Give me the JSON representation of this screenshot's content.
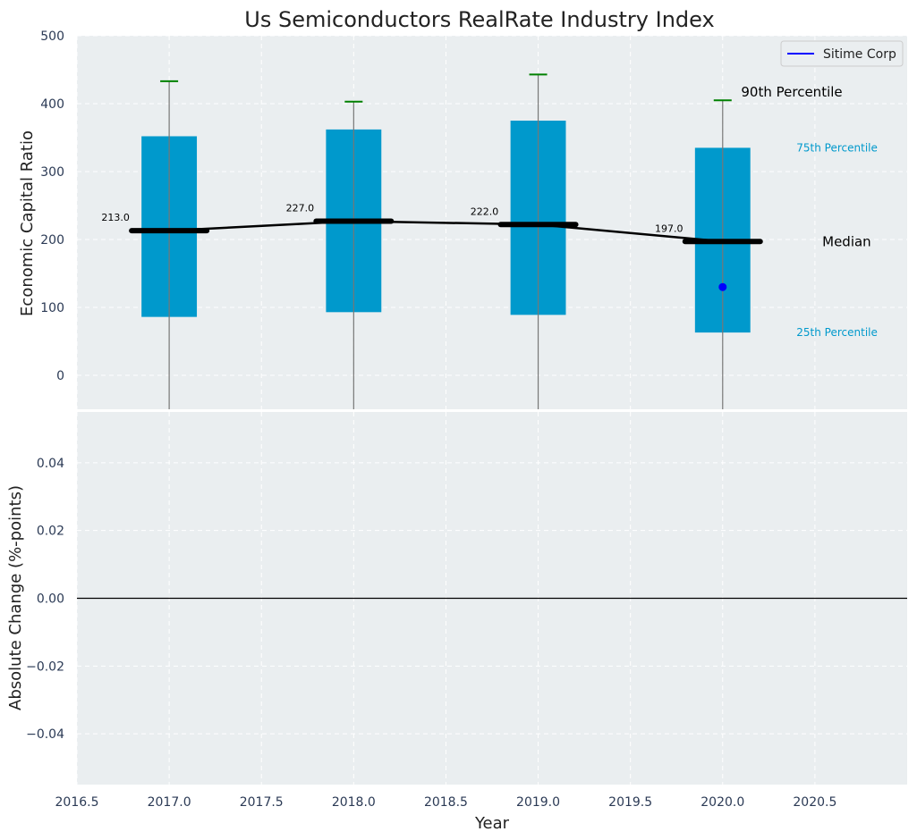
{
  "chart_data": {
    "type": "box",
    "title": "Us Semiconductors RealRate Industry Index",
    "top_panel": {
      "ylabel": "Economic Capital Ratio",
      "ylim": [
        -50,
        500
      ],
      "yticks": [
        "500",
        "400",
        "300",
        "200",
        "100",
        "0"
      ],
      "ytick_values": [
        500,
        400,
        300,
        200,
        100,
        0
      ],
      "years": [
        2017,
        2018,
        2019,
        2020
      ],
      "p25": [
        86,
        93,
        89,
        63
      ],
      "p75": [
        352,
        362,
        375,
        335
      ],
      "median": [
        213,
        227,
        222,
        197
      ],
      "median_labels": [
        "213.0",
        "227.0",
        "222.0",
        "197.0"
      ],
      "p90": [
        433,
        403,
        443,
        405
      ],
      "company": {
        "name": "Sitime Corp",
        "x": 2020,
        "y": 130,
        "color": "#0000ff"
      },
      "annotations": {
        "p90": "90th Percentile",
        "p75": "75th Percentile",
        "median": "Median",
        "p25": "25th Percentile"
      },
      "legend": {
        "label": "Sitime Corp",
        "placement": "top-right"
      },
      "box_color": "#0099cc",
      "whisker_cap_color": "#008000",
      "grid": true
    },
    "bottom_panel": {
      "ylabel": "Absolute Change (%-points)",
      "xlabel": "Year",
      "ylim": [
        -0.055,
        0.055
      ],
      "yticks": [
        "0.04",
        "0.02",
        "0.00",
        "−0.02",
        "−0.04"
      ],
      "ytick_values": [
        0.04,
        0.02,
        0.0,
        -0.02,
        -0.04
      ],
      "zero_line": 0.0,
      "grid": true
    },
    "xlim": [
      2016.5,
      2021.0
    ],
    "xticks": [
      "2016.5",
      "2017.0",
      "2017.5",
      "2018.0",
      "2018.5",
      "2019.0",
      "2019.5",
      "2020.0",
      "2020.5"
    ],
    "xtick_values": [
      2016.5,
      2017.0,
      2017.5,
      2018.0,
      2018.5,
      2019.0,
      2019.5,
      2020.0,
      2020.5
    ],
    "colors": {
      "panel_bg": "#eaeef0",
      "grid": "#ffffff",
      "tick_text": "#2b3a55"
    }
  }
}
